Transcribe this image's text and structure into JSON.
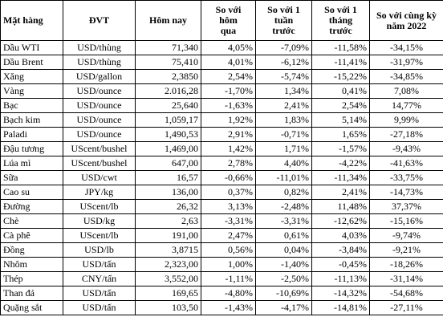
{
  "table": {
    "headers": [
      "Mặt hàng",
      "ĐVT",
      "Hôm nay",
      "So với\nhôm\nqua",
      "So với 1\ntuần\ntrước",
      "So với 1\ntháng\ntrước",
      "So với cùng kỳ\nnăm 2022"
    ],
    "rows": [
      [
        "Dầu WTI",
        "USD/thùng",
        "71,340",
        "4,05%",
        "-7,09%",
        "-11,58%",
        "-34,15%"
      ],
      [
        "Dầu Brent",
        "USD/thùng",
        "75,410",
        "4,01%",
        "-6,12%",
        "-11,41%",
        "-31,97%"
      ],
      [
        "Xăng",
        "USD/gallon",
        "2,3850",
        "2,54%",
        "-5,74%",
        "-15,22%",
        "-34,85%"
      ],
      [
        "Vàng",
        "USD/ounce",
        "2.016,28",
        "-1,70%",
        "1,34%",
        "0,41%",
        "7,08%"
      ],
      [
        "Bạc",
        "USD/ounce",
        "25,640",
        "-1,63%",
        "2,41%",
        "2,54%",
        "14,77%"
      ],
      [
        "Bạch kim",
        "USD/ounce",
        "1,059,17",
        "1,92%",
        "1,83%",
        "5,14%",
        "9,99%"
      ],
      [
        "Paladi",
        "USD/ounce",
        "1,490,53",
        "2,91%",
        "-0,71%",
        "1,65%",
        "-27,18%"
      ],
      [
        "Đậu tương",
        "UScent/bushel",
        "1,469,00",
        "1,42%",
        "1,71%",
        "-1,57%",
        "-9,43%"
      ],
      [
        "Lúa mì",
        "UScent/bushel",
        "647,00",
        "2,78%",
        "4,40%",
        "-4,22%",
        "-41,63%"
      ],
      [
        "Sữa",
        "USD/cwt",
        "16,57",
        "-0,66%",
        "-11,01%",
        "-11,34%",
        "-33,75%"
      ],
      [
        "Cao su",
        "JPY/kg",
        "136,00",
        "0,37%",
        "0,82%",
        "2,41%",
        "-14,73%"
      ],
      [
        "Đường",
        "UScent/lb",
        "26,32",
        "3,13%",
        "-2,48%",
        "11,48%",
        "37,37%"
      ],
      [
        "Chè",
        "USD/kg",
        "2,63",
        "-3,31%",
        "-3,31%",
        "-12,62%",
        "-15,16%"
      ],
      [
        "Cà phê",
        "UScent/lb",
        "191,00",
        "2,47%",
        "0,61%",
        "4,03%",
        "-9,74%"
      ],
      [
        "Đồng",
        "USD/lb",
        "3,8715",
        "0,56%",
        "0,04%",
        "-3,84%",
        "-9,21%"
      ],
      [
        "Nhôm",
        "USD/tấn",
        "2,323,00",
        "1,00%",
        "-1,40%",
        "-0,45%",
        "-18,26%"
      ],
      [
        "Thép",
        "CNY/tấn",
        "3,552,00",
        "-1,11%",
        "-2,50%",
        "-11,13%",
        "-31,14%"
      ],
      [
        "Than đá",
        "USD/tấn",
        "169,65",
        "-4,80%",
        "-10,69%",
        "-14,32%",
        "-54,68%"
      ],
      [
        "Quặng sắt",
        "USD/tấn",
        "103,50",
        "-1,43%",
        "-4,17%",
        "-14,81%",
        "-27,11%"
      ]
    ]
  }
}
